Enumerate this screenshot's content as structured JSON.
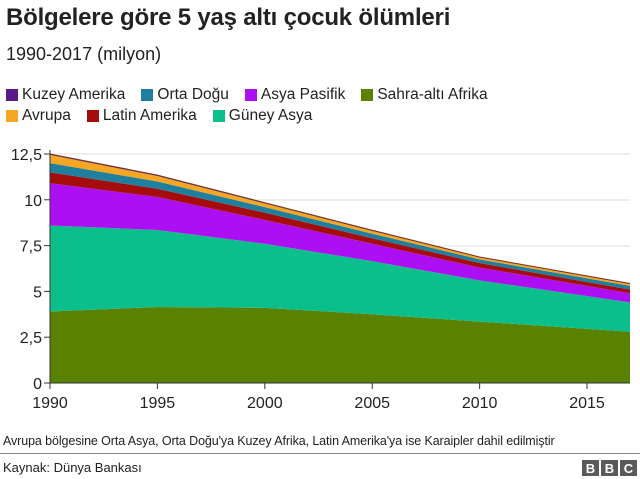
{
  "header": {
    "title": "Bölgelere göre 5 yaş altı çocuk ölümleri",
    "subtitle": "1990-2017 (milyon)"
  },
  "legend": [
    {
      "label": "Kuzey Amerika",
      "color": "#5b1a8b"
    },
    {
      "label": "Orta Doğu",
      "color": "#1f7f9e"
    },
    {
      "label": "Asya Pasifik",
      "color": "#ad0ff5"
    },
    {
      "label": "Sahra-altı Afrika",
      "color": "#5a8100"
    },
    {
      "label": "Avrupa",
      "color": "#f5a623"
    },
    {
      "label": "Latin Amerika",
      "color": "#a50d0d"
    },
    {
      "label": "Güney Asya",
      "color": "#0bbf8c"
    }
  ],
  "footer": {
    "note": "Avrupa bölgesine Orta Asya, Orta Doğu'ya Kuzey Afrika, Latin Amerika'ya ise Karaipler dahil edilmiştir",
    "source": "Kaynak: Dünya Bankası",
    "logo": [
      "B",
      "B",
      "C"
    ]
  },
  "chart_data": {
    "type": "area",
    "stacked": true,
    "title": "Bölgelere göre 5 yaş altı çocuk ölümleri",
    "subtitle": "1990-2017 (milyon)",
    "xlabel": "",
    "ylabel": "",
    "x": [
      1990,
      1995,
      2000,
      2005,
      2010,
      2017
    ],
    "xticks": [
      "1990",
      "1995",
      "2000",
      "2005",
      "2010",
      "2015"
    ],
    "yticks": [
      "0",
      "2,5",
      "5",
      "7,5",
      "10",
      "12,5"
    ],
    "xlim": [
      1990,
      2017
    ],
    "ylim": [
      0,
      12.5
    ],
    "grid": "horizontal",
    "legend_position": "top",
    "series": [
      {
        "name": "Sahra-altı Afrika",
        "color": "#5a8100",
        "values": [
          3.9,
          4.15,
          4.1,
          3.75,
          3.35,
          2.8
        ]
      },
      {
        "name": "Güney Asya",
        "color": "#0bbf8c",
        "values": [
          4.7,
          4.2,
          3.5,
          2.9,
          2.25,
          1.6
        ]
      },
      {
        "name": "Asya Pasifik",
        "color": "#ad0ff5",
        "values": [
          2.3,
          1.8,
          1.3,
          0.95,
          0.7,
          0.5
        ]
      },
      {
        "name": "Latin Amerika",
        "color": "#a50d0d",
        "values": [
          0.6,
          0.45,
          0.4,
          0.3,
          0.25,
          0.2
        ]
      },
      {
        "name": "Orta Doğu",
        "color": "#1f7f9e",
        "values": [
          0.5,
          0.4,
          0.3,
          0.25,
          0.2,
          0.2
        ]
      },
      {
        "name": "Avrupa",
        "color": "#f5a623",
        "values": [
          0.45,
          0.3,
          0.2,
          0.15,
          0.1,
          0.1
        ]
      },
      {
        "name": "Kuzey Amerika",
        "color": "#5b1a8b",
        "values": [
          0.05,
          0.05,
          0.04,
          0.04,
          0.03,
          0.03
        ]
      }
    ]
  }
}
